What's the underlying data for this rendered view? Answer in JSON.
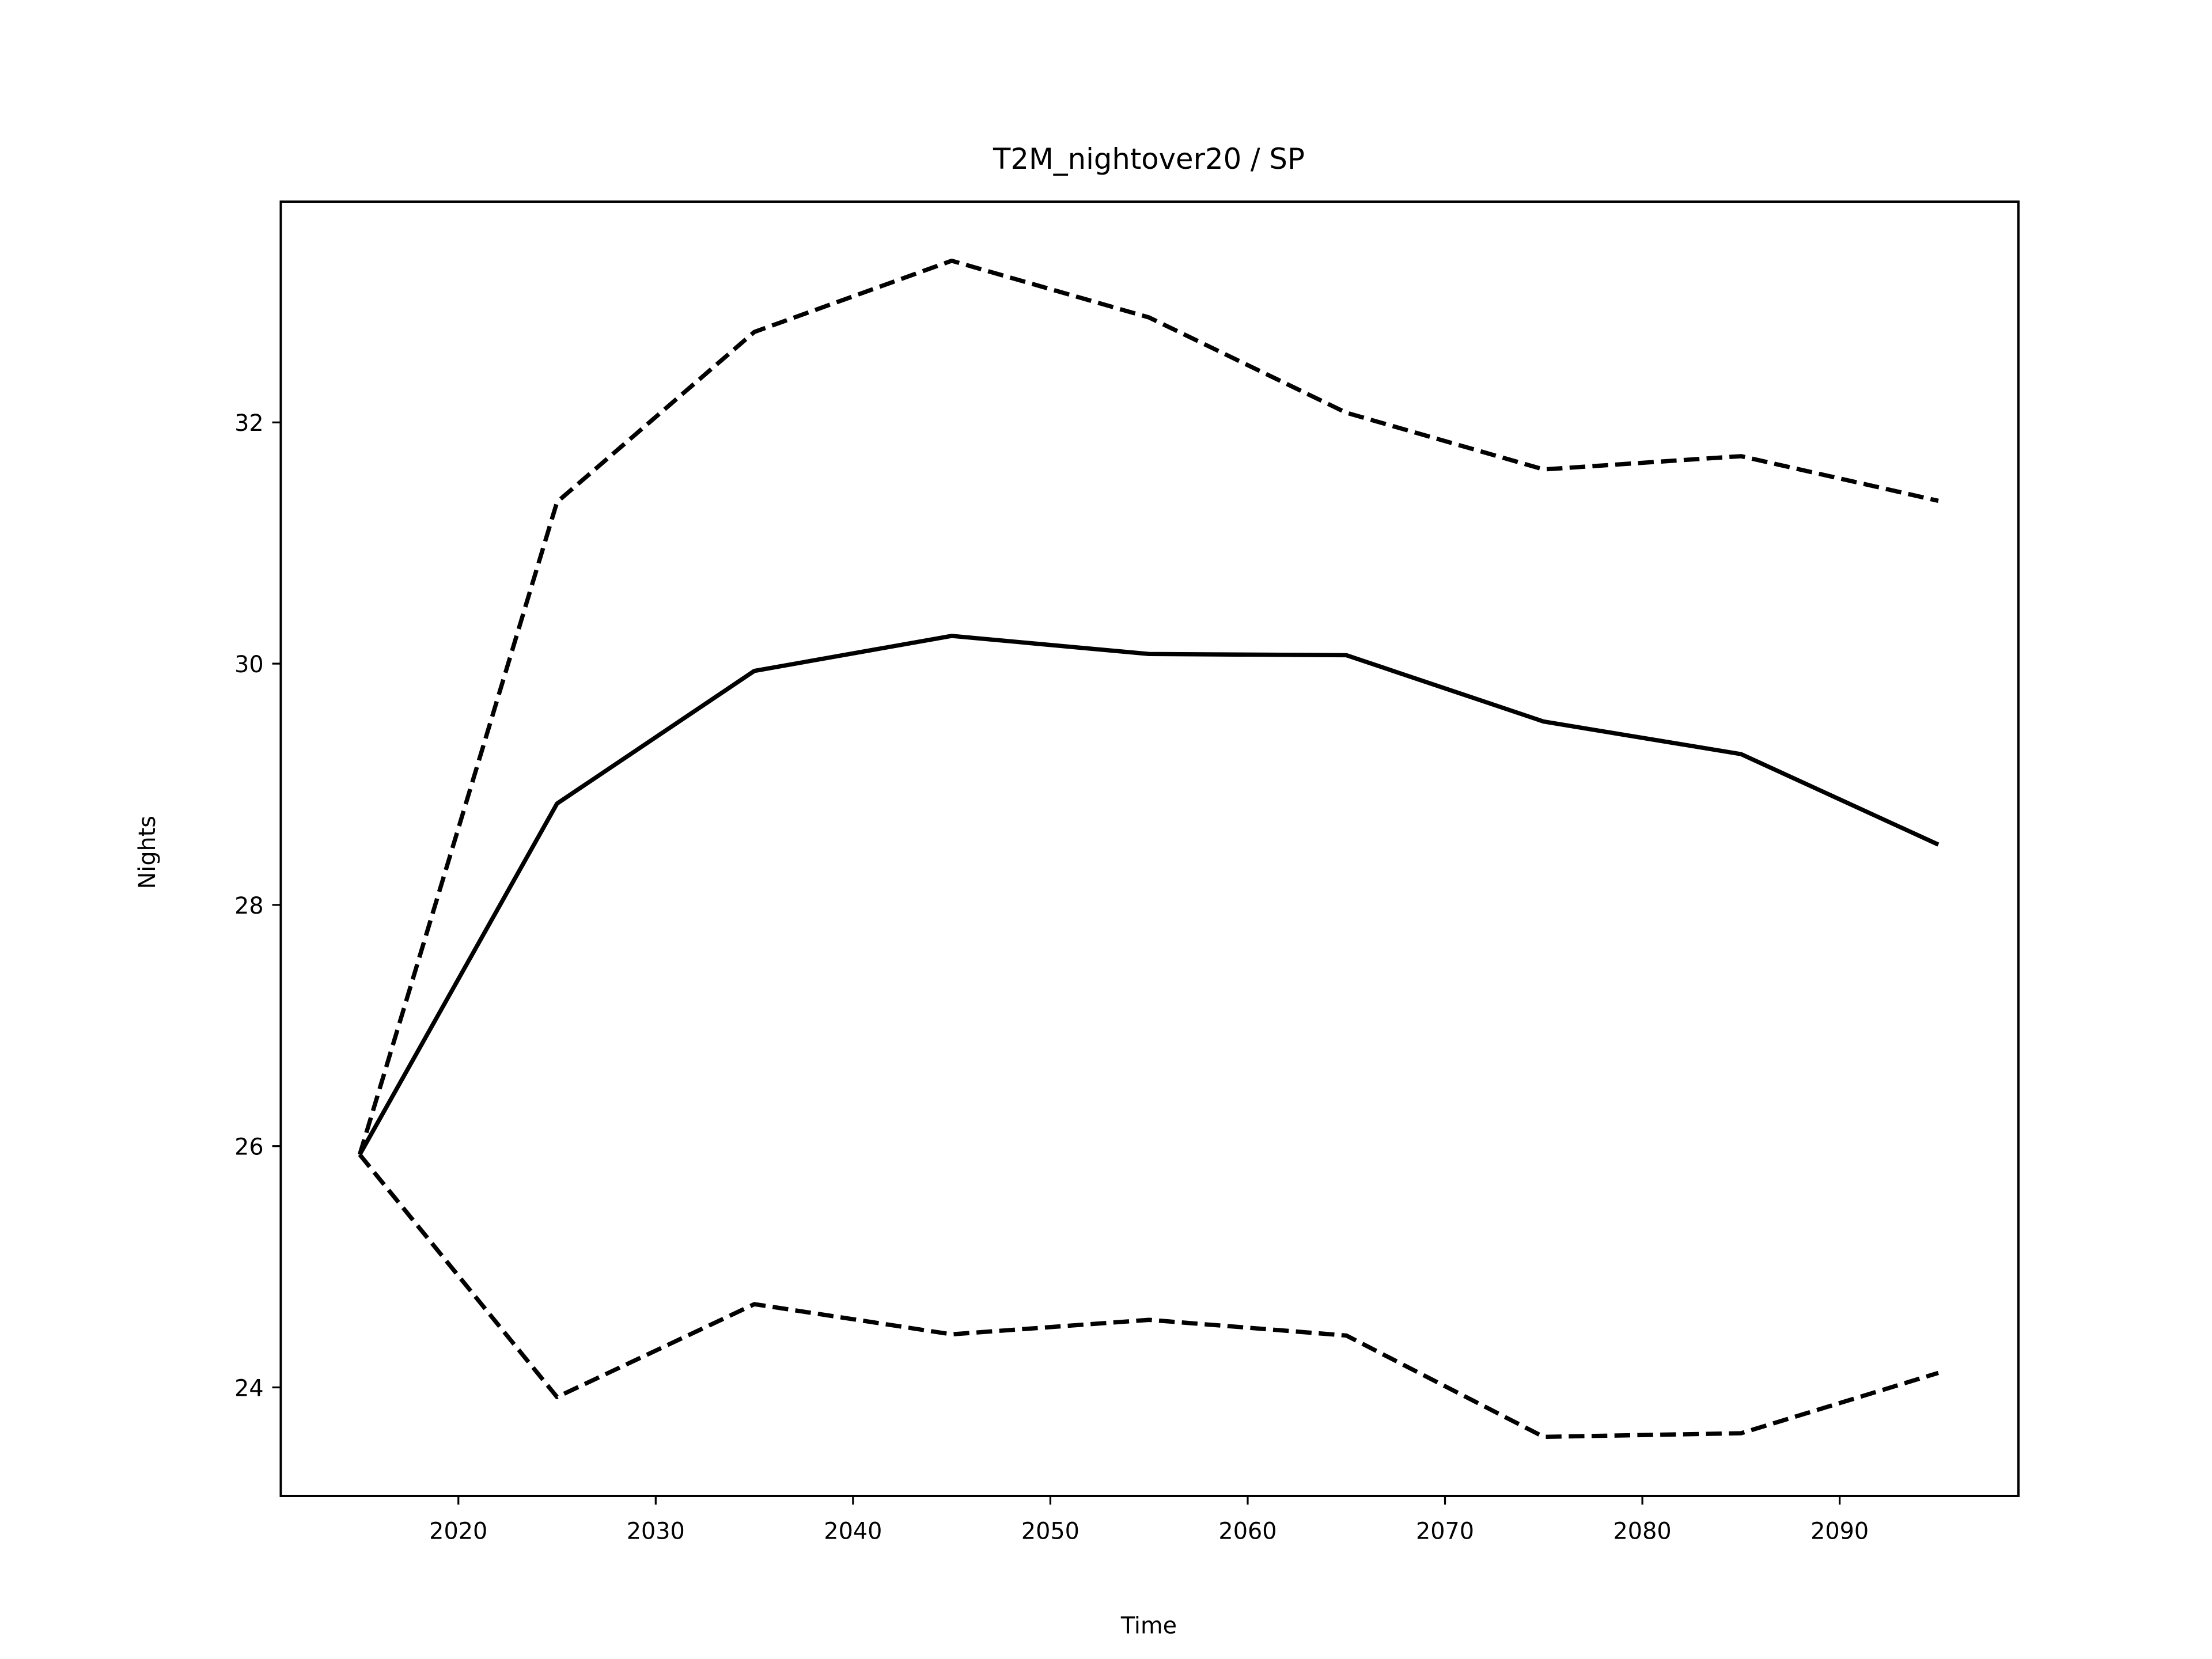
{
  "chart_data": {
    "type": "line",
    "title": "T2M_nightover20 / SP",
    "xlabel": "Time",
    "ylabel": "Nights",
    "x": [
      2015,
      2025,
      2035,
      2045,
      2055,
      2065,
      2075,
      2085,
      2095
    ],
    "series": [
      {
        "color": "#000000",
        "style": "dashed",
        "values": [
          25.93,
          31.34,
          32.75,
          33.34,
          32.87,
          32.08,
          31.61,
          31.72,
          31.35
        ]
      },
      {
        "color": "#000000",
        "style": "solid",
        "values": [
          25.93,
          28.84,
          29.94,
          30.23,
          30.08,
          30.07,
          29.52,
          29.25,
          28.5
        ]
      },
      {
        "color": "#000000",
        "style": "dashed",
        "values": [
          25.93,
          23.92,
          24.69,
          24.44,
          24.56,
          24.43,
          23.59,
          23.62,
          24.12
        ]
      }
    ],
    "xlim": [
      2011,
      2099.06
    ],
    "xticks": [
      2020,
      2030,
      2040,
      2050,
      2060,
      2070,
      2080,
      2090
    ],
    "ylim": [
      23.1,
      33.83
    ],
    "yticks": [
      24,
      26,
      28,
      30,
      32
    ],
    "grid": false
  }
}
